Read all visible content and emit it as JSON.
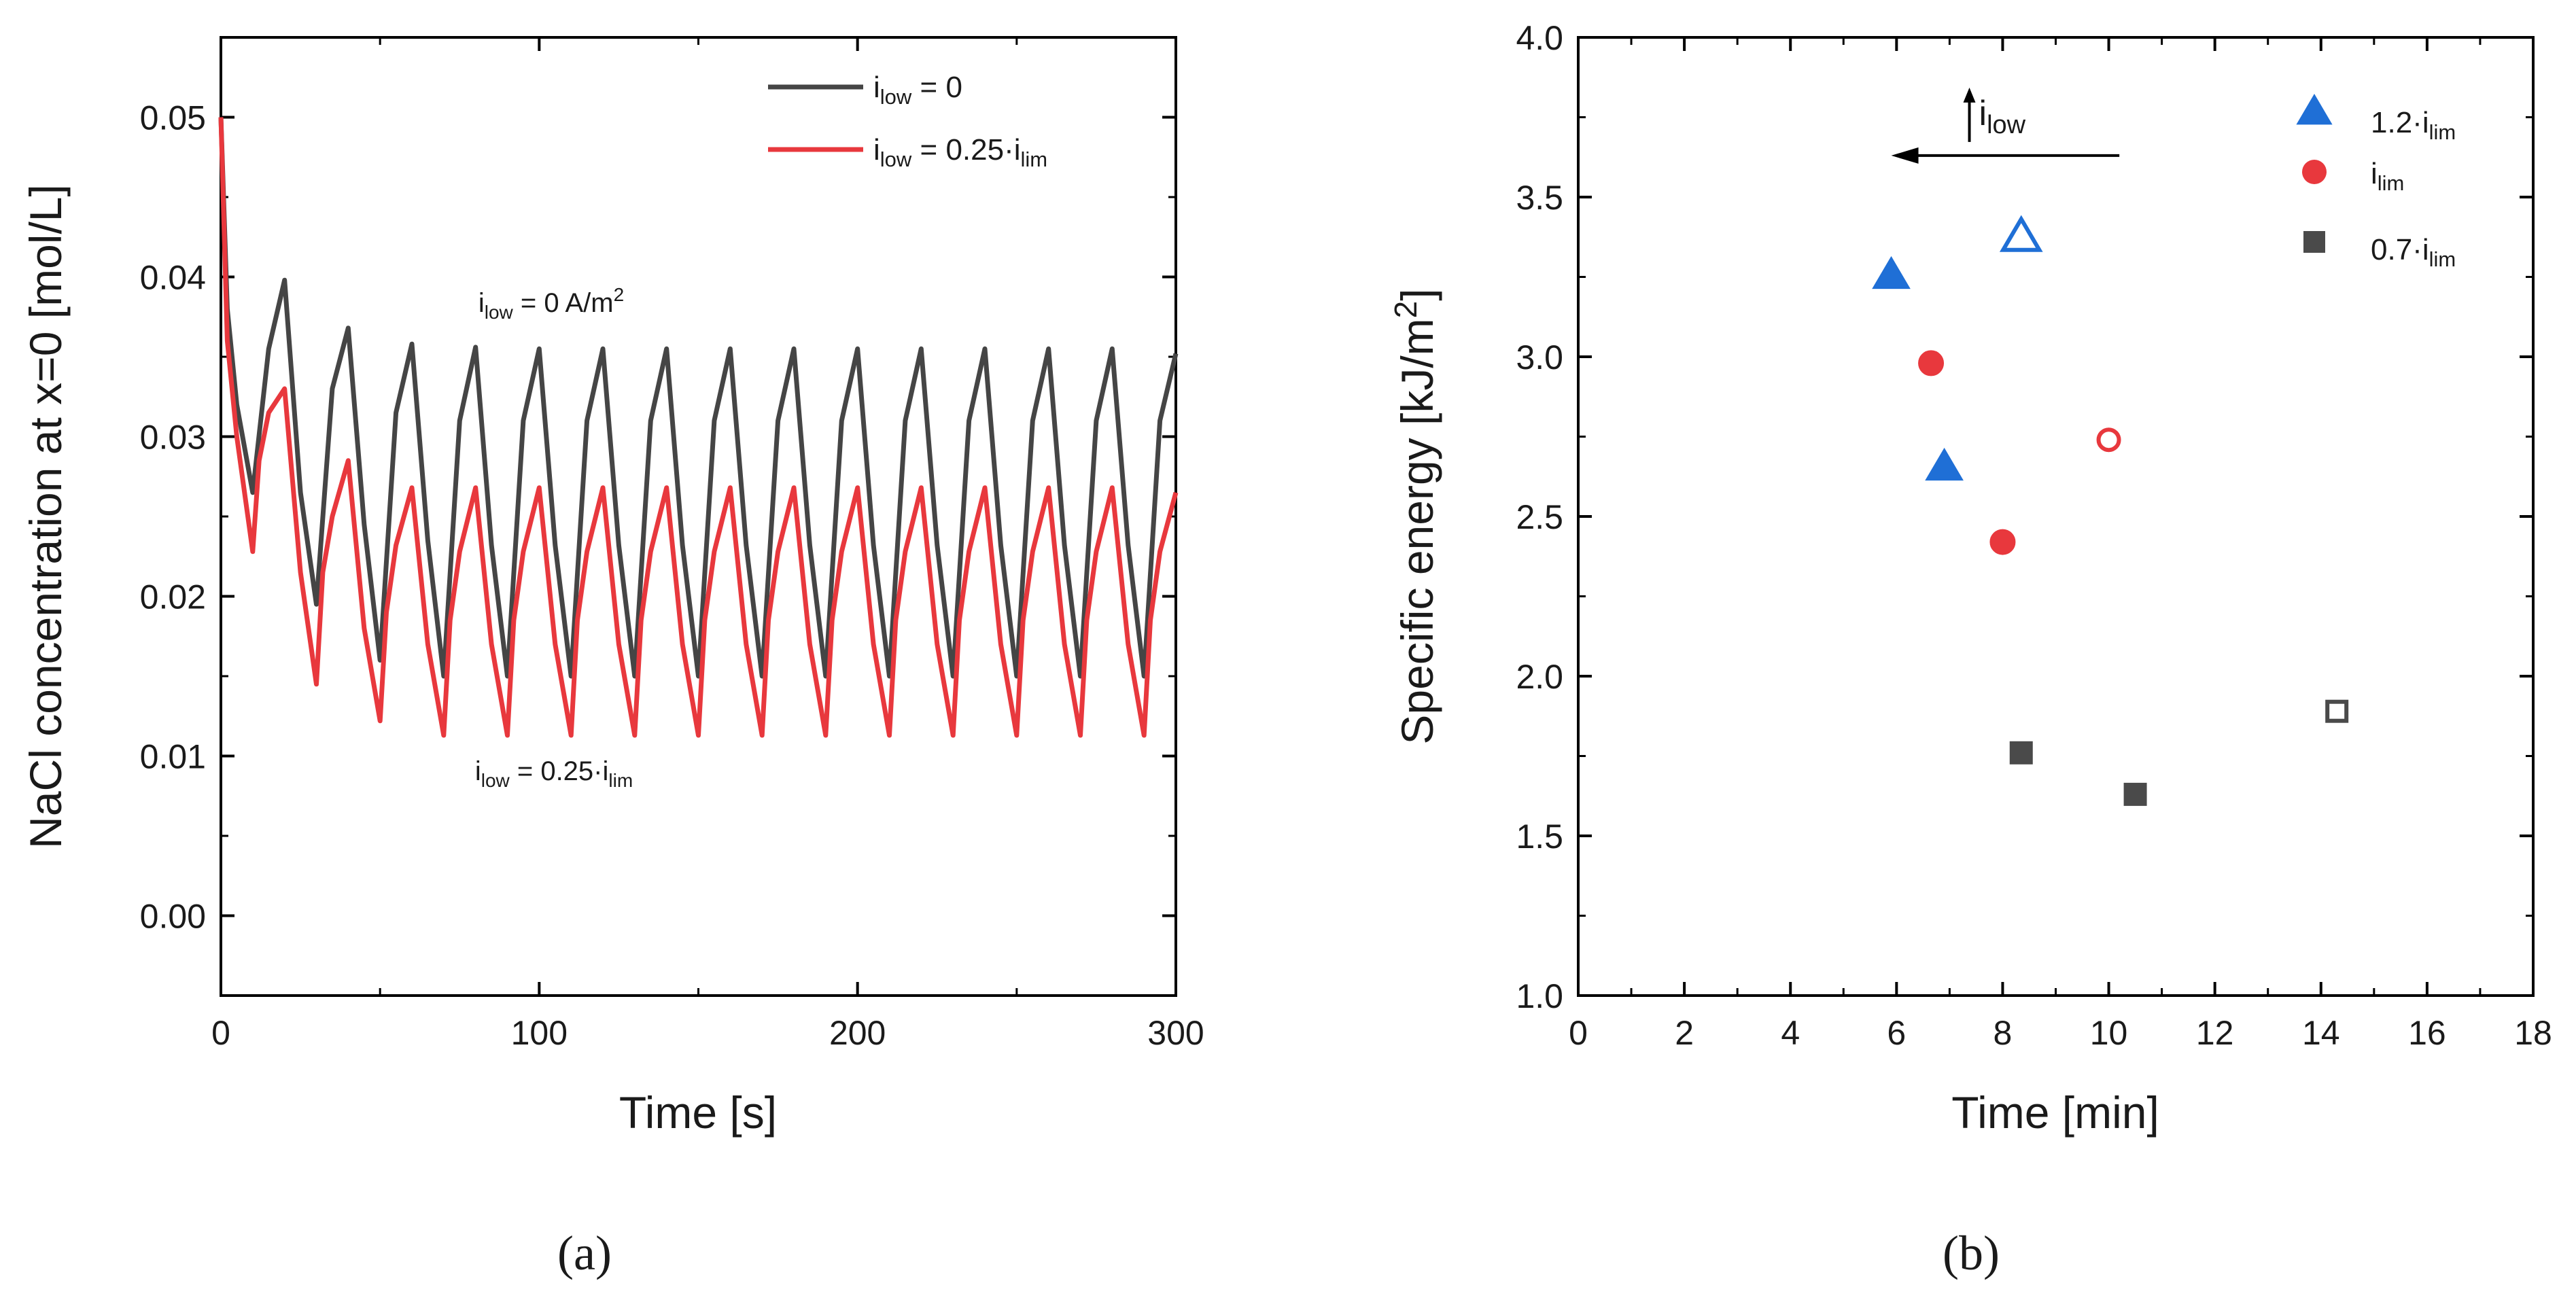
{
  "colors": {
    "dark_series": "#454545",
    "red_series": "#e8383d",
    "blue_marker": "#1f6fd6",
    "red_marker": "#e8383d",
    "gray_marker": "#4a4a4a"
  },
  "chart_data": [
    {
      "id": "a",
      "type": "line",
      "panel_label": "(a)",
      "xlabel": "Time [s]",
      "ylabel": "NaCl concentration at x=0 [mol/L]",
      "xlim": [
        0,
        300
      ],
      "ylim": [
        -0.005,
        0.055
      ],
      "xticks": [
        0,
        100,
        200,
        300
      ],
      "xtick_labels": [
        "0",
        "100",
        "200",
        "300"
      ],
      "yticks": [
        0.0,
        0.01,
        0.02,
        0.03,
        0.04,
        0.05
      ],
      "ytick_labels": [
        "0.00",
        "0.01",
        "0.02",
        "0.03",
        "0.04",
        "0.05"
      ],
      "legend_position": "top-right",
      "series": [
        {
          "name": "i_low = 0",
          "legend_main": "i",
          "legend_sub": "low",
          "legend_rest": " = 0",
          "color": "#454545",
          "x": [
            0,
            2,
            5,
            10,
            15,
            20,
            25,
            30,
            35,
            40,
            45,
            50,
            55,
            60,
            65,
            70,
            75,
            80,
            85,
            90,
            95,
            100,
            105,
            110,
            115,
            120,
            125,
            130,
            135,
            140,
            145,
            150,
            155,
            160,
            165,
            170,
            175,
            180,
            185,
            190,
            195,
            200,
            205,
            210,
            215,
            220,
            225,
            230,
            235,
            240,
            245,
            250,
            255,
            260,
            265,
            270,
            275,
            280,
            285,
            290,
            295,
            300
          ],
          "y": [
            0.05,
            0.038,
            0.032,
            0.0265,
            0.0355,
            0.0398,
            0.0265,
            0.0195,
            0.033,
            0.0368,
            0.0245,
            0.016,
            0.0315,
            0.0358,
            0.0235,
            0.015,
            0.031,
            0.0356,
            0.0232,
            0.015,
            0.031,
            0.0355,
            0.0232,
            0.015,
            0.031,
            0.0355,
            0.0232,
            0.015,
            0.031,
            0.0355,
            0.0232,
            0.015,
            0.031,
            0.0355,
            0.0232,
            0.015,
            0.031,
            0.0355,
            0.0232,
            0.015,
            0.031,
            0.0355,
            0.0232,
            0.015,
            0.031,
            0.0355,
            0.0232,
            0.015,
            0.031,
            0.0355,
            0.0232,
            0.015,
            0.031,
            0.0355,
            0.0232,
            0.015,
            0.031,
            0.0355,
            0.0232,
            0.015,
            0.031,
            0.0352
          ]
        },
        {
          "name": "i_low = 0.25·i_lim",
          "legend_main": "i",
          "legend_sub": "low",
          "legend_rest": " = 0.25·i",
          "legend_sub2": "lim",
          "color": "#e8383d",
          "x": [
            0,
            2,
            5,
            10,
            12,
            15,
            20,
            25,
            30,
            32,
            35,
            40,
            45,
            50,
            52,
            55,
            60,
            65,
            70,
            72,
            75,
            80,
            85,
            90,
            92,
            95,
            100,
            105,
            110,
            112,
            115,
            120,
            125,
            130,
            132,
            135,
            140,
            145,
            150,
            152,
            155,
            160,
            165,
            170,
            172,
            175,
            180,
            185,
            190,
            192,
            195,
            200,
            205,
            210,
            212,
            215,
            220,
            225,
            230,
            232,
            235,
            240,
            245,
            250,
            252,
            255,
            260,
            265,
            270,
            272,
            275,
            280,
            285,
            290,
            292,
            295,
            300
          ],
          "y": [
            0.05,
            0.036,
            0.03,
            0.0228,
            0.0285,
            0.0315,
            0.033,
            0.0215,
            0.0145,
            0.0215,
            0.025,
            0.0285,
            0.018,
            0.0122,
            0.019,
            0.0232,
            0.0268,
            0.017,
            0.0113,
            0.0185,
            0.0228,
            0.0268,
            0.017,
            0.0113,
            0.0185,
            0.0228,
            0.0268,
            0.017,
            0.0113,
            0.0185,
            0.0228,
            0.0268,
            0.017,
            0.0113,
            0.0185,
            0.0228,
            0.0268,
            0.017,
            0.0113,
            0.0185,
            0.0228,
            0.0268,
            0.017,
            0.0113,
            0.0185,
            0.0228,
            0.0268,
            0.017,
            0.0113,
            0.0185,
            0.0228,
            0.0268,
            0.017,
            0.0113,
            0.0185,
            0.0228,
            0.0268,
            0.017,
            0.0113,
            0.0185,
            0.0228,
            0.0268,
            0.017,
            0.0113,
            0.0185,
            0.0228,
            0.0268,
            0.017,
            0.0113,
            0.0185,
            0.0228,
            0.0268,
            0.017,
            0.0113,
            0.0185,
            0.0228,
            0.0265
          ]
        }
      ],
      "annotations": [
        {
          "main": "i",
          "sub": "low",
          "rest": " = 0 A/m",
          "sup": "2",
          "x": 130,
          "y": 0.0378
        },
        {
          "main": "i",
          "sub": "low",
          "rest": " = 0.25·i",
          "sub2": "lim",
          "x": 130,
          "y": 0.0085
        }
      ]
    },
    {
      "id": "b",
      "type": "scatter",
      "panel_label": "(b)",
      "xlabel": "Time [min]",
      "ylabel": "Specific energy [kJ/m²]",
      "ylabel_main": "Specific energy [kJ/m",
      "ylabel_sup": "2",
      "ylabel_end": "]",
      "xlim": [
        0,
        18
      ],
      "ylim": [
        1.0,
        4.0
      ],
      "xticks": [
        0,
        2,
        4,
        6,
        8,
        10,
        12,
        14,
        16,
        18
      ],
      "xtick_labels": [
        "0",
        "2",
        "4",
        "6",
        "8",
        "10",
        "12",
        "14",
        "16",
        "18"
      ],
      "yticks": [
        1.0,
        1.5,
        2.0,
        2.5,
        3.0,
        3.5,
        4.0
      ],
      "ytick_labels": [
        "1.0",
        "1.5",
        "2.0",
        "2.5",
        "3.0",
        "3.5",
        "4.0"
      ],
      "legend_position": "top-right",
      "series": [
        {
          "name": "1.2·i_lim",
          "legend_main": "1.2·i",
          "legend_sub": "lim",
          "marker": "triangle",
          "color": "#1f6fd6",
          "points": [
            {
              "x": 5.9,
              "y": 3.26,
              "filled": true
            },
            {
              "x": 6.9,
              "y": 2.66,
              "filled": true
            },
            {
              "x": 8.35,
              "y": 3.38,
              "filled": false
            }
          ]
        },
        {
          "name": "i_lim",
          "legend_main": "i",
          "legend_sub": "lim",
          "marker": "circle",
          "color": "#e8383d",
          "points": [
            {
              "x": 6.65,
              "y": 2.98,
              "filled": true
            },
            {
              "x": 8.0,
              "y": 2.42,
              "filled": true
            },
            {
              "x": 10.0,
              "y": 2.74,
              "filled": false
            }
          ]
        },
        {
          "name": "0.7·i_lim",
          "legend_main": "0.7·i",
          "legend_sub": "lim",
          "marker": "square",
          "color": "#4a4a4a",
          "points": [
            {
              "x": 8.35,
              "y": 1.76,
              "filled": true
            },
            {
              "x": 10.5,
              "y": 1.63,
              "filled": true
            },
            {
              "x": 14.3,
              "y": 1.89,
              "filled": false
            }
          ]
        }
      ],
      "arrow_annotation": {
        "main": "i",
        "sub": "low",
        "direction": "left",
        "x_from": 10.2,
        "x_to": 5.9,
        "y": 3.63
      }
    }
  ]
}
